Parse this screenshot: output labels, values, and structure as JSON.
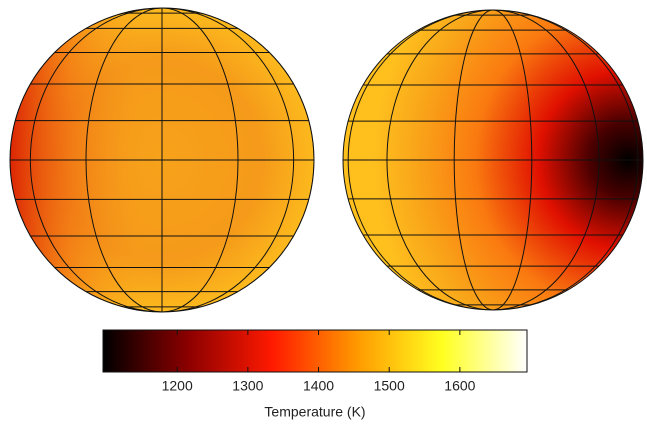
{
  "chart_data": {
    "type": "colorbar",
    "label": "Temperature (K)",
    "clim": [
      1095,
      1695
    ],
    "ticks": [
      1200,
      1300,
      1400,
      1500,
      1600
    ],
    "colormap": [
      "#000000",
      "#8b0000",
      "#ff1a00",
      "#ff9a00",
      "#ffff20",
      "#ffffff"
    ]
  }
}
